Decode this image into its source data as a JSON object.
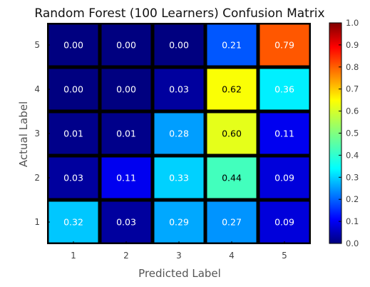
{
  "chart_data": {
    "type": "heatmap",
    "title": "Random Forest (100 Learners) Confusion Matrix",
    "xlabel": "Predicted Label",
    "ylabel": "Actual Label",
    "x_categories": [
      "1",
      "2",
      "3",
      "4",
      "5"
    ],
    "y_categories": [
      "5",
      "4",
      "3",
      "2",
      "1"
    ],
    "values": [
      [
        0.0,
        0.0,
        0.0,
        0.21,
        0.79
      ],
      [
        0.0,
        0.0,
        0.03,
        0.62,
        0.36
      ],
      [
        0.01,
        0.01,
        0.28,
        0.6,
        0.11
      ],
      [
        0.03,
        0.11,
        0.33,
        0.44,
        0.09
      ],
      [
        0.32,
        0.03,
        0.29,
        0.27,
        0.09
      ]
    ],
    "cell_labels": [
      [
        "0.00",
        "0.00",
        "0.00",
        "0.21",
        "0.79"
      ],
      [
        "0.00",
        "0.00",
        "0.03",
        "0.62",
        "0.36"
      ],
      [
        "0.01",
        "0.01",
        "0.28",
        "0.60",
        "0.11"
      ],
      [
        "0.03",
        "0.11",
        "0.33",
        "0.44",
        "0.09"
      ],
      [
        "0.32",
        "0.03",
        "0.29",
        "0.27",
        "0.09"
      ]
    ],
    "colormap": "jet",
    "colorbar": {
      "range": [
        0.0,
        1.0
      ],
      "ticks": [
        "0.0",
        "0.1",
        "0.2",
        "0.3",
        "0.4",
        "0.5",
        "0.6",
        "0.7",
        "0.8",
        "0.9",
        "1.0"
      ]
    },
    "cell_border_color": "#000000",
    "text_color_light": "#ffffff",
    "text_color_dark": "#000000"
  }
}
